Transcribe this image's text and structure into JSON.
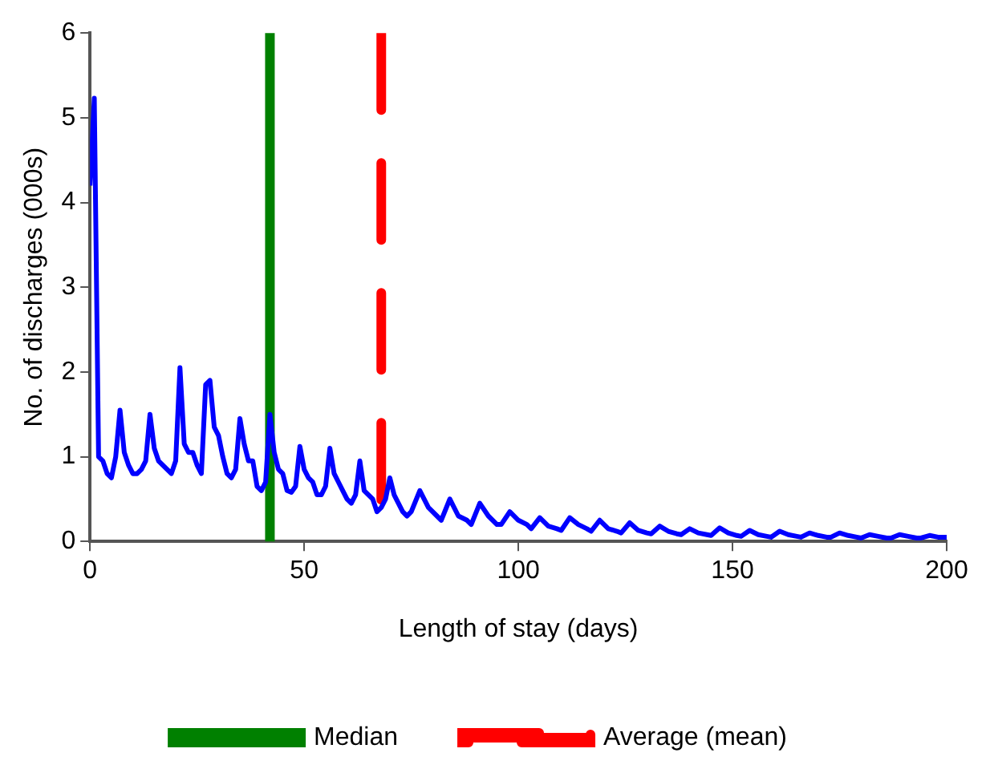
{
  "chart_data": {
    "type": "line",
    "xlabel": "Length of stay (days)",
    "ylabel": "No. of discharges (000s)",
    "xlim": [
      0,
      200
    ],
    "xticks": [
      0,
      50,
      100,
      150,
      200
    ],
    "ylim": [
      0,
      6
    ],
    "yticks": [
      0,
      1,
      2,
      3,
      4,
      5,
      6
    ],
    "grid": false,
    "legend": "bottom",
    "marker": "none",
    "line_style": "solid",
    "series": [
      {
        "color": "#0000ff",
        "x": [
          0,
          1,
          2,
          3,
          4,
          5,
          6,
          7,
          8,
          9,
          10,
          11,
          12,
          13,
          14,
          15,
          16,
          17,
          18,
          19,
          20,
          21,
          22,
          23,
          24,
          25,
          26,
          27,
          28,
          29,
          30,
          31,
          32,
          33,
          34,
          35,
          36,
          37,
          38,
          39,
          40,
          41,
          42,
          43,
          44,
          45,
          46,
          47,
          48,
          49,
          50,
          51,
          52,
          53,
          54,
          55,
          56,
          57,
          58,
          59,
          60,
          61,
          62,
          63,
          64,
          65,
          66,
          67,
          68,
          69,
          70,
          71,
          72,
          73,
          74,
          75,
          77,
          79,
          81,
          82,
          84,
          86,
          88,
          89,
          91,
          93,
          95,
          96,
          98,
          100,
          102,
          103,
          105,
          107,
          109,
          110,
          112,
          114,
          116,
          117,
          119,
          121,
          123,
          124,
          126,
          128,
          130,
          131,
          133,
          135,
          137,
          138,
          140,
          142,
          144,
          145,
          147,
          149,
          151,
          152,
          154,
          156,
          158,
          159,
          161,
          163,
          165,
          166,
          168,
          170,
          172,
          173,
          175,
          177,
          179,
          180,
          182,
          184,
          186,
          187,
          189,
          191,
          193,
          194,
          196,
          198,
          200
        ],
        "values": [
          4.2,
          5.23,
          1.0,
          0.95,
          0.8,
          0.75,
          1.0,
          1.55,
          1.05,
          0.9,
          0.8,
          0.8,
          0.85,
          0.95,
          1.5,
          1.1,
          0.95,
          0.9,
          0.85,
          0.8,
          0.95,
          2.05,
          1.15,
          1.05,
          1.05,
          0.9,
          0.8,
          1.85,
          1.9,
          1.35,
          1.25,
          1.0,
          0.8,
          0.75,
          0.85,
          1.45,
          1.15,
          0.95,
          0.95,
          0.65,
          0.6,
          0.7,
          1.5,
          1.05,
          0.85,
          0.8,
          0.6,
          0.58,
          0.65,
          1.12,
          0.85,
          0.75,
          0.7,
          0.55,
          0.55,
          0.65,
          1.1,
          0.8,
          0.7,
          0.6,
          0.5,
          0.45,
          0.55,
          0.95,
          0.6,
          0.55,
          0.5,
          0.35,
          0.4,
          0.5,
          0.75,
          0.55,
          0.45,
          0.35,
          0.3,
          0.35,
          0.6,
          0.4,
          0.3,
          0.25,
          0.5,
          0.3,
          0.25,
          0.2,
          0.45,
          0.3,
          0.2,
          0.2,
          0.35,
          0.25,
          0.2,
          0.15,
          0.28,
          0.18,
          0.15,
          0.13,
          0.28,
          0.2,
          0.15,
          0.12,
          0.25,
          0.15,
          0.12,
          0.1,
          0.22,
          0.13,
          0.1,
          0.09,
          0.18,
          0.12,
          0.09,
          0.08,
          0.15,
          0.1,
          0.08,
          0.07,
          0.16,
          0.1,
          0.07,
          0.06,
          0.13,
          0.08,
          0.06,
          0.05,
          0.12,
          0.08,
          0.06,
          0.05,
          0.1,
          0.07,
          0.05,
          0.05,
          0.1,
          0.07,
          0.05,
          0.04,
          0.08,
          0.06,
          0.04,
          0.04,
          0.08,
          0.06,
          0.04,
          0.04,
          0.07,
          0.05,
          0.05
        ]
      }
    ],
    "ref_lines": [
      {
        "axis": "x",
        "value": 42,
        "label": "Median",
        "color": "#008000",
        "line_style": "solid"
      },
      {
        "axis": "x",
        "value": 68,
        "label": "Average (mean)",
        "color": "#ff0000",
        "line_style": "dashed"
      }
    ]
  }
}
